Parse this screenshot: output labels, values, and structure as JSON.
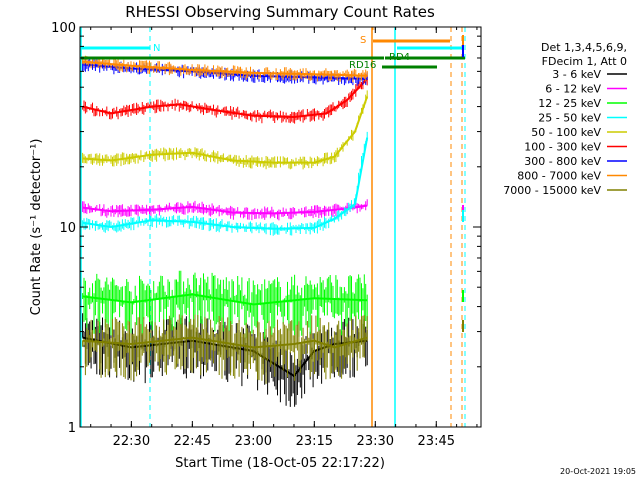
{
  "chart_data": {
    "type": "line",
    "title": "RHESSI Observing Summary Count Rates",
    "xlabel": "Start Time (18-Oct-05 22:17:22)",
    "ylabel": "Count Rate (s⁻¹ detector⁻¹)",
    "yscale": "log",
    "ylim": [
      1,
      100
    ],
    "xlim": [
      "22:17:22",
      "23:56:00"
    ],
    "x_ticks": [
      "22:30",
      "22:45",
      "23:00",
      "23:15",
      "23:30",
      "23:45"
    ],
    "y_ticks": [
      "1",
      "10",
      "100"
    ],
    "legend_position": "right",
    "legend_header": [
      "Det 1,3,4,5,6,9,",
      "FDecim 1, Att 0"
    ],
    "series": [
      {
        "name": "3 - 6 keV",
        "color": "#000000",
        "x": [
          "22:18",
          "22:30",
          "22:45",
          "23:00",
          "23:10",
          "23:15",
          "23:20",
          "23:28"
        ],
        "y": [
          2.8,
          2.5,
          2.7,
          2.4,
          1.8,
          2.4,
          2.6,
          2.7
        ]
      },
      {
        "name": "6 - 12 keV",
        "color": "#ff00ff",
        "x": [
          "22:18",
          "22:25",
          "22:35",
          "22:45",
          "22:55",
          "23:05",
          "23:15",
          "23:22",
          "23:28"
        ],
        "y": [
          12.5,
          12.0,
          12.2,
          12.6,
          11.8,
          11.7,
          11.9,
          12.3,
          12.8
        ]
      },
      {
        "name": "12 - 25 keV",
        "color": "#00ff00",
        "x": [
          "22:18",
          "22:30",
          "22:45",
          "23:00",
          "23:15",
          "23:28"
        ],
        "y": [
          4.5,
          4.2,
          4.6,
          4.1,
          4.4,
          4.3
        ]
      },
      {
        "name": "25 - 50 keV",
        "color": "#00ffff",
        "x": [
          "22:18",
          "22:25",
          "22:35",
          "22:45",
          "22:55",
          "23:05",
          "23:15",
          "23:20",
          "23:25",
          "23:28"
        ],
        "y": [
          10.5,
          10.0,
          10.8,
          10.6,
          10.0,
          9.8,
          9.9,
          11.0,
          13.0,
          28.0
        ]
      },
      {
        "name": "50 - 100 keV",
        "color": "#cccc00",
        "x": [
          "22:18",
          "22:25",
          "22:35",
          "22:45",
          "22:55",
          "23:05",
          "23:15",
          "23:20",
          "23:25",
          "23:28"
        ],
        "y": [
          22.0,
          21.5,
          23.0,
          23.5,
          21.5,
          21.0,
          21.0,
          22.5,
          30.0,
          45.0
        ]
      },
      {
        "name": "100 - 300 keV",
        "color": "#ff0000",
        "x": [
          "22:18",
          "22:25",
          "22:35",
          "22:42",
          "22:50",
          "23:00",
          "23:10",
          "23:18",
          "23:23",
          "23:28"
        ],
        "y": [
          40.0,
          37.0,
          40.0,
          41.0,
          38.5,
          36.0,
          35.5,
          37.0,
          43.0,
          55.0
        ]
      },
      {
        "name": "300 - 800 keV",
        "color": "#0000ff",
        "x": [
          "22:18",
          "22:30",
          "22:45",
          "23:00",
          "23:15",
          "23:28"
        ],
        "y": [
          65.0,
          62.0,
          60.0,
          57.0,
          56.0,
          55.0
        ]
      },
      {
        "name": "800 - 7000 keV",
        "color": "#ff8800",
        "x": [
          "22:18",
          "22:30",
          "22:45",
          "23:00",
          "23:15",
          "23:28"
        ],
        "y": [
          67.0,
          64.0,
          61.0,
          59.0,
          58.0,
          57.0
        ]
      },
      {
        "name": "7000 - 15000 keV",
        "color": "#808000",
        "x": [
          "22:18",
          "22:30",
          "22:45",
          "23:00",
          "23:10",
          "23:15",
          "23:20",
          "23:28"
        ],
        "y": [
          2.7,
          2.6,
          2.8,
          2.5,
          2.6,
          2.7,
          2.5,
          2.8
        ]
      }
    ],
    "annotations": [
      {
        "text": "N",
        "color": "#00ffff"
      },
      {
        "text": "S",
        "color": "#ff8800"
      },
      {
        "text": "RD16",
        "color": "#008000"
      },
      {
        "text": "RD4",
        "color": "#008000"
      }
    ],
    "timestamp": "20-Oct-2021 19:05"
  }
}
